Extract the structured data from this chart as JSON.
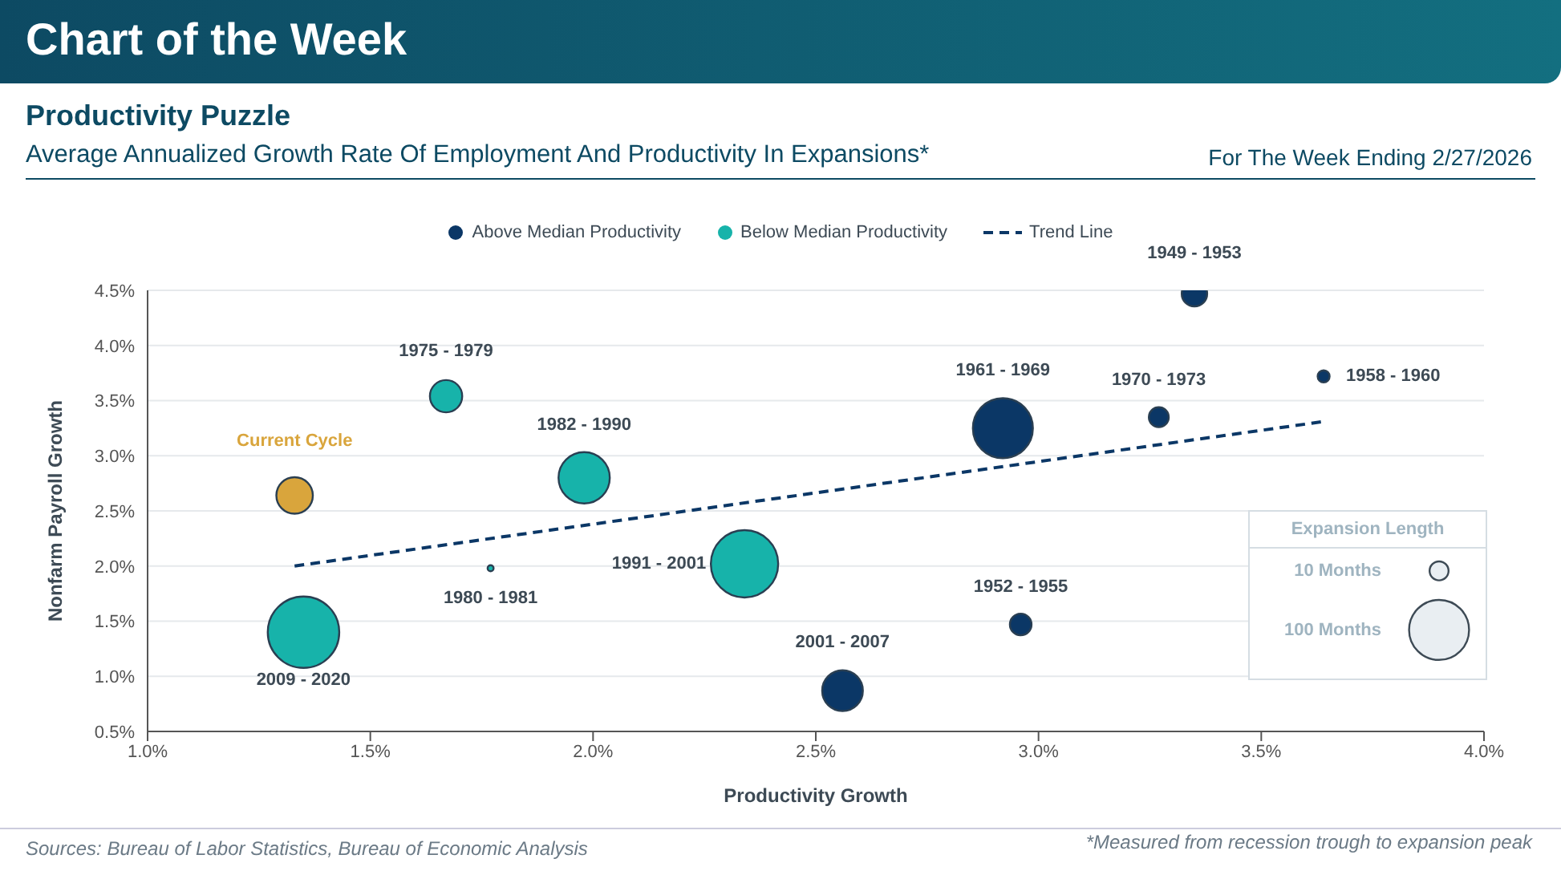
{
  "chart_data": {
    "type": "bubble",
    "title": "Productivity Puzzle",
    "subtitle": "Average Annualized Growth Rate Of Employment And Productivity In Expansions*",
    "xlabel": "Productivity Growth",
    "ylabel": "Nonfarm Payroll Growth",
    "legend_title": "Expansion Length",
    "xlim": [
      1.0,
      4.0
    ],
    "xticks": [
      {
        "value": 1.0,
        "label": "1.0%"
      },
      {
        "value": 1.5,
        "label": "1.5%"
      },
      {
        "value": 2.0,
        "label": "2.0%"
      },
      {
        "value": 2.5,
        "label": "2.5%"
      },
      {
        "value": 3.0,
        "label": "3.0%"
      },
      {
        "value": 3.5,
        "label": "3.5%"
      },
      {
        "value": 4.0,
        "label": "4.0%"
      }
    ],
    "ylim": [
      0.5,
      4.5
    ],
    "yticks": [
      {
        "value": 0.5,
        "label": "0.5%"
      },
      {
        "value": 1.0,
        "label": "1.0%"
      },
      {
        "value": 1.5,
        "label": "1.5%"
      },
      {
        "value": 2.0,
        "label": "2.0%"
      },
      {
        "value": 2.5,
        "label": "2.5%"
      },
      {
        "value": 3.0,
        "label": "3.0%"
      },
      {
        "value": 3.5,
        "label": "3.5%"
      },
      {
        "value": 4.0,
        "label": "4.0%"
      },
      {
        "value": 4.5,
        "label": "4.5%"
      }
    ],
    "size_legend": [
      {
        "value": 10,
        "label": "10 Months"
      },
      {
        "value": 100,
        "label": "100 Months"
      }
    ],
    "grid": "y",
    "legend": "top",
    "series": [
      {
        "name": "Above Median Productivity",
        "color": "#0b3766",
        "x": [
          3.35,
          3.64,
          3.27,
          2.92,
          2.96,
          2.56
        ],
        "values": [
          4.47,
          3.72,
          3.35,
          3.25,
          1.47,
          0.87
        ],
        "sizes": [
          18,
          4,
          11,
          100,
          13,
          46
        ]
      },
      {
        "name": "Below Median Productivity",
        "color": "#17b3aa",
        "x": [
          2.34,
          1.98,
          1.67,
          1.77,
          1.35
        ],
        "values": [
          2.02,
          2.8,
          3.54,
          1.98,
          1.4
        ],
        "sizes": [
          126,
          73,
          29,
          1,
          142
        ]
      },
      {
        "name": "Current Cycle",
        "color": "#d9a53c",
        "x": [
          1.33
        ],
        "values": [
          2.64
        ],
        "sizes": [
          37
        ]
      },
      {
        "name": "Trend Line",
        "type": "line",
        "color": "#0b3766",
        "line_style": "dashed",
        "x": [
          1.33,
          3.64
        ],
        "values": [
          2.0,
          3.31
        ]
      }
    ],
    "annotations": [
      {
        "text": "1949 - 1953",
        "x": 3.35,
        "y": 4.47
      },
      {
        "text": "1958 - 1960",
        "x": 3.64,
        "y": 3.72
      },
      {
        "text": "1970 - 1973",
        "x": 3.27,
        "y": 3.35
      },
      {
        "text": "1961 - 1969",
        "x": 2.92,
        "y": 3.25
      },
      {
        "text": "1952 - 1955",
        "x": 2.96,
        "y": 1.47
      },
      {
        "text": "2001 - 2007",
        "x": 2.56,
        "y": 0.87
      },
      {
        "text": "1991 - 2001",
        "x": 2.34,
        "y": 2.02
      },
      {
        "text": "1982 - 1990",
        "x": 1.98,
        "y": 2.8
      },
      {
        "text": "1975 - 1979",
        "x": 1.67,
        "y": 3.54
      },
      {
        "text": "1980 - 1981",
        "x": 1.77,
        "y": 1.98
      },
      {
        "text": "2009 - 2020",
        "x": 1.35,
        "y": 1.4
      },
      "Chart of the Week",
      "For The Week Ending 2/27/2026",
      "Sources: Bureau of Labor Statistics, Bureau of Economic Analysis",
      "*Measured from recession trough to expansion peak"
    ]
  }
}
